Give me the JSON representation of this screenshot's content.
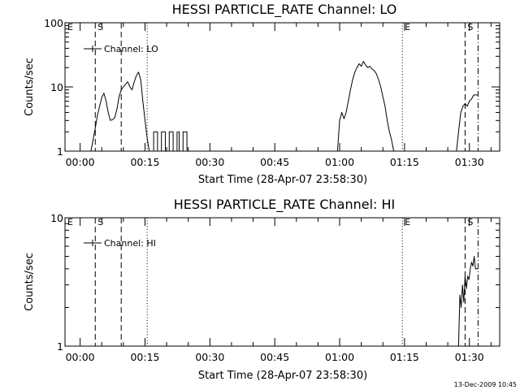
{
  "colors": {
    "background": "#ffffff",
    "ink": "#000000"
  },
  "footer": {
    "timestamp": "13-Dec-2009 10:45"
  },
  "chart_data": [
    {
      "type": "line",
      "title": "HESSI PARTICLE_RATE Channel: LO",
      "xlabel": "Start Time (28-Apr-07 23:58:30)",
      "ylabel": "Counts/sec",
      "x_unit": "minutes after start time",
      "xlim": [
        -2,
        98.5
      ],
      "ylim": [
        1,
        100
      ],
      "y_scale": "log",
      "grid": false,
      "x_ticks": [
        1.5,
        16.5,
        31.5,
        46.5,
        61.5,
        76.5,
        91.5
      ],
      "x_tick_labels": [
        "00:00",
        "00:15",
        "00:30",
        "00:45",
        "01:00",
        "01:15",
        "01:30"
      ],
      "y_ticks": [
        1,
        10,
        100
      ],
      "y_tick_labels": [
        "1",
        "10",
        "100"
      ],
      "legend": {
        "position": "top-left",
        "entries": [
          "Channel: LO"
        ]
      },
      "markers": [
        {
          "x": -2.0,
          "style": "dashdot",
          "label": "E"
        },
        {
          "x": 5.0,
          "style": "dashed",
          "label": "S"
        },
        {
          "x": 11.0,
          "style": "dashed",
          "label": ""
        },
        {
          "x": 17.0,
          "style": "dotted",
          "label": ""
        },
        {
          "x": 76.0,
          "style": "dotted",
          "label": "E"
        },
        {
          "x": 90.5,
          "style": "dashed",
          "label": "S"
        },
        {
          "x": 93.5,
          "style": "dashdot",
          "label": ""
        }
      ],
      "series": [
        {
          "x": [
            4.0,
            4.5,
            5.0,
            5.5,
            6.0,
            6.5,
            7.0,
            7.5,
            8.0,
            8.5,
            9.0,
            9.5,
            10.0,
            10.5,
            11.0,
            11.5,
            12.0,
            12.5,
            13.0,
            13.5,
            14.0,
            14.5,
            15.0,
            15.5,
            16.0,
            16.5,
            17.0,
            17.5
          ],
          "y": [
            1,
            1.5,
            2.3,
            3.6,
            5,
            6.8,
            8,
            6,
            4,
            3,
            3.1,
            3.3,
            4.5,
            7,
            9,
            10,
            11,
            12,
            10,
            9,
            12,
            15,
            17,
            13,
            6,
            3,
            1.6,
            1
          ]
        },
        {
          "x": [
            18.5,
            18.5,
            19.0,
            19.4,
            19.4,
            19.9,
            20.3,
            20.3,
            20.8,
            21.2,
            21.2,
            21.7,
            22.1,
            22.1,
            22.6,
            23.0,
            23.0,
            23.5,
            23.9,
            23.9
          ],
          "y": [
            1,
            2,
            2,
            2,
            1,
            1,
            1,
            2,
            2,
            2,
            1,
            1,
            1,
            2,
            2,
            2,
            1,
            1,
            1,
            2
          ]
        },
        {
          "x": [
            24.0,
            24.4,
            24.4,
            24.9,
            25.3,
            25.3,
            25.8,
            26.2,
            26.2
          ],
          "y": [
            2,
            2,
            1,
            1,
            1,
            2,
            2,
            2,
            1
          ]
        },
        {
          "x": [
            61.0,
            61.5,
            62.0,
            62.5,
            63.0,
            63.5,
            64.0,
            64.5,
            65.0,
            65.5,
            66.0,
            66.5,
            67.0,
            67.5,
            68.0,
            68.5,
            69.0,
            69.5,
            70.0,
            70.5,
            71.0,
            71.5,
            72.0,
            72.5,
            73.0,
            73.5,
            74.0
          ],
          "y": [
            1,
            3,
            4,
            3.2,
            4,
            6,
            9,
            13,
            17,
            20,
            23,
            21,
            25,
            22,
            20,
            21,
            19,
            18,
            16,
            13,
            10,
            7,
            5,
            3,
            2,
            1.5,
            1
          ]
        },
        {
          "x": [
            88.5,
            89.0,
            89.5,
            90.0,
            90.5,
            91.0,
            91.5,
            92.0,
            92.5,
            93.0,
            93.5
          ],
          "y": [
            1,
            2,
            4,
            5,
            5.5,
            5,
            6,
            6.5,
            7.5,
            7.5,
            7.5
          ]
        }
      ]
    },
    {
      "type": "line",
      "title": "HESSI PARTICLE_RATE Channel: HI",
      "xlabel": "Start Time (28-Apr-07 23:58:30)",
      "ylabel": "Counts/sec",
      "x_unit": "minutes after start time",
      "xlim": [
        -2,
        98.5
      ],
      "ylim": [
        1,
        10
      ],
      "y_scale": "log",
      "grid": false,
      "x_ticks": [
        1.5,
        16.5,
        31.5,
        46.5,
        61.5,
        76.5,
        91.5
      ],
      "x_tick_labels": [
        "00:00",
        "00:15",
        "00:30",
        "00:45",
        "01:00",
        "01:15",
        "01:30"
      ],
      "y_ticks": [
        1,
        10
      ],
      "y_tick_labels": [
        "1",
        "10"
      ],
      "legend": {
        "position": "top-left",
        "entries": [
          "Channel: HI"
        ]
      },
      "markers": [
        {
          "x": -2.0,
          "style": "dashdot",
          "label": "E"
        },
        {
          "x": 5.0,
          "style": "dashed",
          "label": "S"
        },
        {
          "x": 11.0,
          "style": "dashed",
          "label": ""
        },
        {
          "x": 17.0,
          "style": "dotted",
          "label": ""
        },
        {
          "x": 76.0,
          "style": "dotted",
          "label": "E"
        },
        {
          "x": 90.5,
          "style": "dashed",
          "label": "S"
        },
        {
          "x": 93.5,
          "style": "dashdot",
          "label": ""
        }
      ],
      "series": [
        {
          "x": [
            89.0,
            89.3,
            89.6,
            89.9,
            90.2,
            90.5,
            90.8,
            91.1,
            91.4,
            91.7,
            92.0,
            92.3,
            92.6,
            92.9,
            93.2,
            93.5
          ],
          "y": [
            1,
            2.5,
            2,
            3,
            2.2,
            3.5,
            2.8,
            3.5,
            3.3,
            4,
            4.5,
            4.2,
            5,
            4,
            4,
            4
          ]
        }
      ]
    }
  ]
}
